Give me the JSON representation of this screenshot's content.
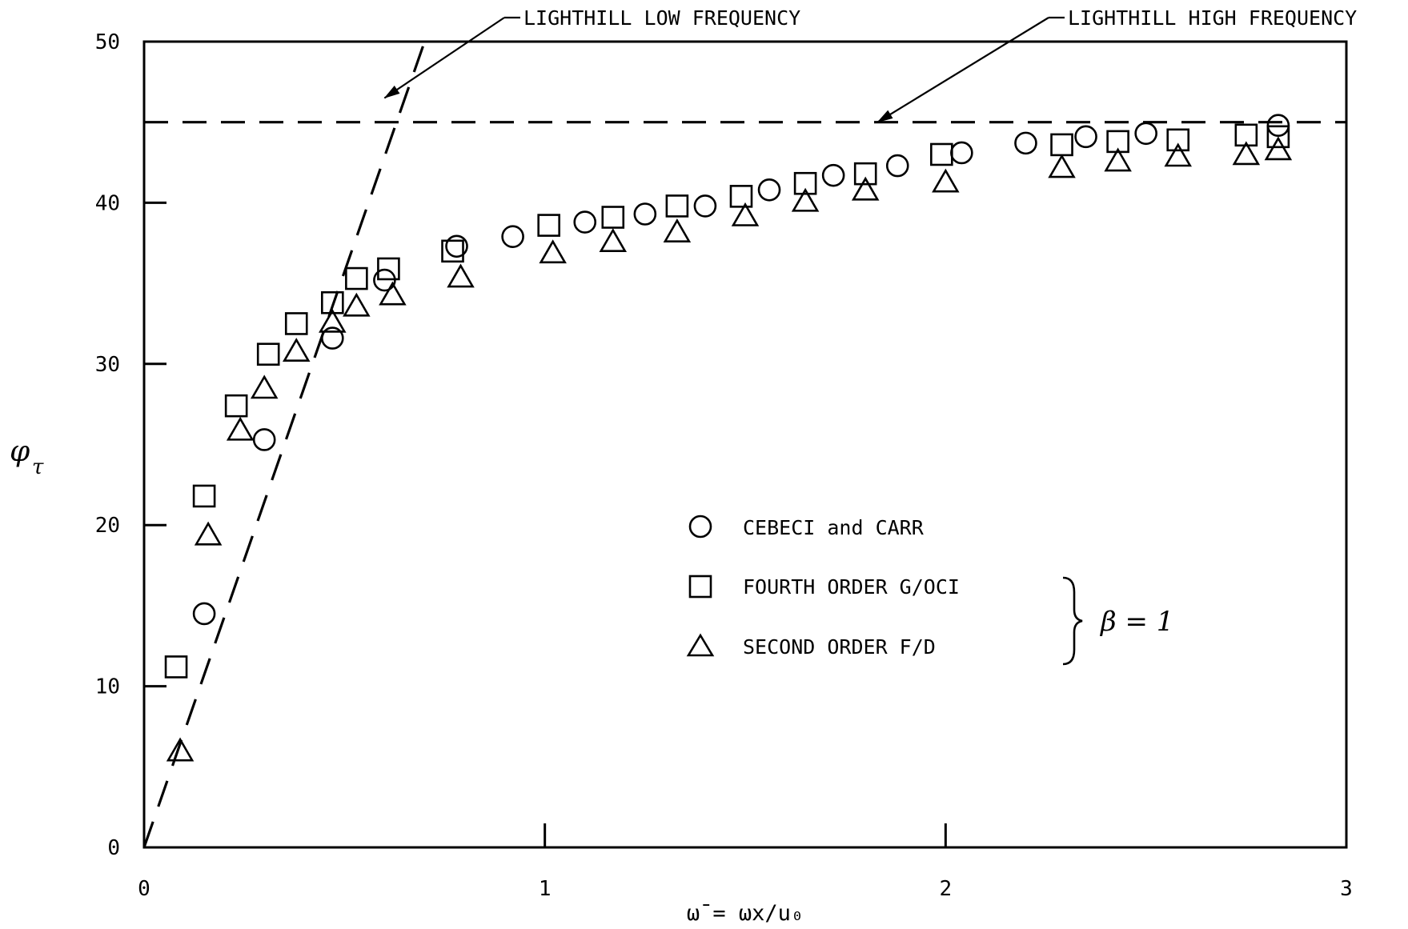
{
  "chart_data": {
    "type": "scatter",
    "title": "",
    "xlabel": "ω̄ = ωx/u₀",
    "ylabel": "φτ",
    "xlim": [
      0,
      3
    ],
    "ylim": [
      0,
      50
    ],
    "x_ticks": [
      0,
      1,
      2,
      3
    ],
    "x_tick_labels": [
      "0",
      "1",
      "2",
      "3"
    ],
    "y_ticks": [
      0,
      10,
      20,
      30,
      40,
      50
    ],
    "y_tick_labels": [
      "0",
      "10",
      "20",
      "30",
      "40",
      "50"
    ],
    "grid": false,
    "legend_position": "center-right",
    "beta_label": "β = 1",
    "series": [
      {
        "name": "CEBECI and CARR",
        "marker": "circle",
        "points": [
          [
            0.15,
            14.5
          ],
          [
            0.3,
            25.3
          ],
          [
            0.47,
            31.6
          ],
          [
            0.6,
            35.2
          ],
          [
            0.78,
            37.3
          ],
          [
            0.92,
            37.9
          ],
          [
            1.1,
            38.8
          ],
          [
            1.25,
            39.3
          ],
          [
            1.4,
            39.8
          ],
          [
            1.56,
            40.8
          ],
          [
            1.72,
            41.7
          ],
          [
            1.88,
            42.3
          ],
          [
            2.04,
            43.1
          ],
          [
            2.2,
            43.7
          ],
          [
            2.35,
            44.1
          ],
          [
            2.5,
            44.3
          ],
          [
            2.83,
            44.8
          ]
        ]
      },
      {
        "name": "FOURTH ORDER G/OCI",
        "marker": "square",
        "points": [
          [
            0.08,
            11.2
          ],
          [
            0.15,
            21.8
          ],
          [
            0.23,
            27.4
          ],
          [
            0.31,
            30.6
          ],
          [
            0.38,
            32.5
          ],
          [
            0.47,
            33.8
          ],
          [
            0.53,
            35.3
          ],
          [
            0.61,
            35.9
          ],
          [
            0.77,
            37.0
          ],
          [
            1.01,
            38.6
          ],
          [
            1.17,
            39.1
          ],
          [
            1.33,
            39.8
          ],
          [
            1.49,
            40.4
          ],
          [
            1.65,
            41.2
          ],
          [
            1.8,
            41.8
          ],
          [
            1.99,
            43.0
          ],
          [
            2.29,
            43.6
          ],
          [
            2.43,
            43.8
          ],
          [
            2.58,
            43.9
          ],
          [
            2.75,
            44.2
          ],
          [
            2.83,
            44.1
          ]
        ]
      },
      {
        "name": "SECOND ORDER F/D",
        "marker": "triangle",
        "points": [
          [
            0.09,
            6.0
          ],
          [
            0.16,
            19.4
          ],
          [
            0.24,
            25.9
          ],
          [
            0.3,
            28.5
          ],
          [
            0.38,
            30.8
          ],
          [
            0.47,
            32.6
          ],
          [
            0.53,
            33.6
          ],
          [
            0.62,
            34.3
          ],
          [
            0.79,
            35.4
          ],
          [
            1.02,
            36.9
          ],
          [
            1.17,
            37.6
          ],
          [
            1.33,
            38.2
          ],
          [
            1.5,
            39.2
          ],
          [
            1.65,
            40.1
          ],
          [
            1.8,
            40.8
          ],
          [
            2.0,
            41.3
          ],
          [
            2.29,
            42.2
          ],
          [
            2.43,
            42.6
          ],
          [
            2.58,
            42.9
          ],
          [
            2.75,
            43.0
          ],
          [
            2.83,
            43.3
          ]
        ]
      }
    ],
    "reference_lines": [
      {
        "name": "LIGHTHILL LOW FREQUENCY",
        "style": "dashed",
        "points": [
          [
            0.0,
            0.0
          ],
          [
            0.7,
            50.0
          ]
        ],
        "callout_target": [
          0.6,
          46.5
        ]
      },
      {
        "name": "LIGHTHILL HIGH FREQUENCY",
        "style": "dashed",
        "points": [
          [
            0.0,
            45.0
          ],
          [
            3.0,
            45.0
          ]
        ],
        "callout_target": [
          1.83,
          45.0
        ]
      }
    ]
  }
}
